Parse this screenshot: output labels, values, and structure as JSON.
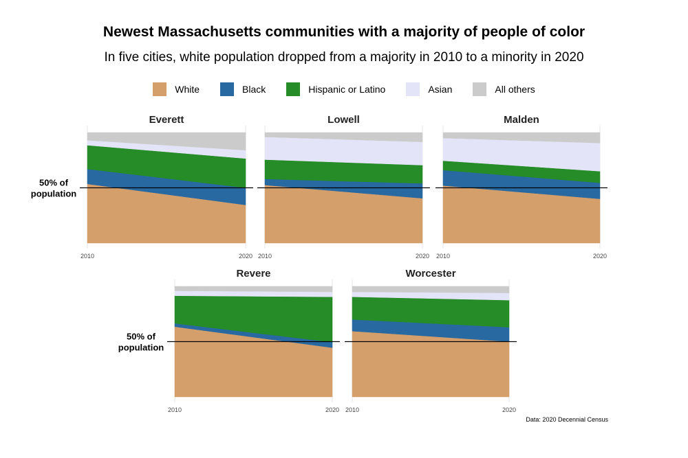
{
  "title": "Newest Massachusetts communities with a majority of people of color",
  "subtitle": "In five cities, white population dropped from a majority in 2010 to a minority in 2020",
  "legend": [
    {
      "label": "White",
      "color": "#d59f6b"
    },
    {
      "label": "Black",
      "color": "#2769a0"
    },
    {
      "label": "Hispanic or Latino",
      "color": "#258c27"
    },
    {
      "label": "Asian",
      "color": "#e4e4f8"
    },
    {
      "label": "All others",
      "color": "#cbcbcb"
    }
  ],
  "reference_line_label": [
    "50% of",
    "population"
  ],
  "caption": "Data: 2020 Decennial Census",
  "chart_data": {
    "type": "area",
    "stacked": true,
    "x": [
      "2010",
      "2020"
    ],
    "ylim": [
      0,
      100
    ],
    "reference_line": 50,
    "series_names": [
      "White",
      "Black",
      "Hispanic or Latino",
      "Asian",
      "All others"
    ],
    "panels": [
      {
        "city": "Everett",
        "values": {
          "White": [
            53.5,
            34.5
          ],
          "Black": [
            13.5,
            15.5
          ],
          "Hispanic or Latino": [
            21.5,
            26.5
          ],
          "Asian": [
            4.5,
            7.5
          ],
          "All others": [
            7.0,
            16.0
          ]
        }
      },
      {
        "city": "Lowell",
        "values": {
          "White": [
            52.5,
            40.5
          ],
          "Black": [
            5.5,
            13.5
          ],
          "Hispanic or Latino": [
            17.5,
            16.5
          ],
          "Asian": [
            20.5,
            21.0
          ],
          "All others": [
            4.0,
            8.5
          ]
        }
      },
      {
        "city": "Malden",
        "values": {
          "White": [
            52.0,
            40.0
          ],
          "Black": [
            14.0,
            14.5
          ],
          "Hispanic or Latino": [
            8.5,
            10.5
          ],
          "Asian": [
            20.5,
            25.5
          ],
          "All others": [
            5.0,
            9.5
          ]
        }
      },
      {
        "city": "Revere",
        "values": {
          "White": [
            63.5,
            44.5
          ],
          "Black": [
            3.0,
            5.0
          ],
          "Hispanic or Latino": [
            25.0,
            41.0
          ],
          "Asian": [
            4.5,
            4.5
          ],
          "All others": [
            4.0,
            5.0
          ]
        }
      },
      {
        "city": "Worcester",
        "values": {
          "White": [
            59.5,
            50.0
          ],
          "Black": [
            10.5,
            13.0
          ],
          "Hispanic or Latino": [
            20.5,
            24.5
          ],
          "Asian": [
            4.5,
            6.5
          ],
          "All others": [
            5.0,
            6.0
          ]
        }
      }
    ]
  }
}
